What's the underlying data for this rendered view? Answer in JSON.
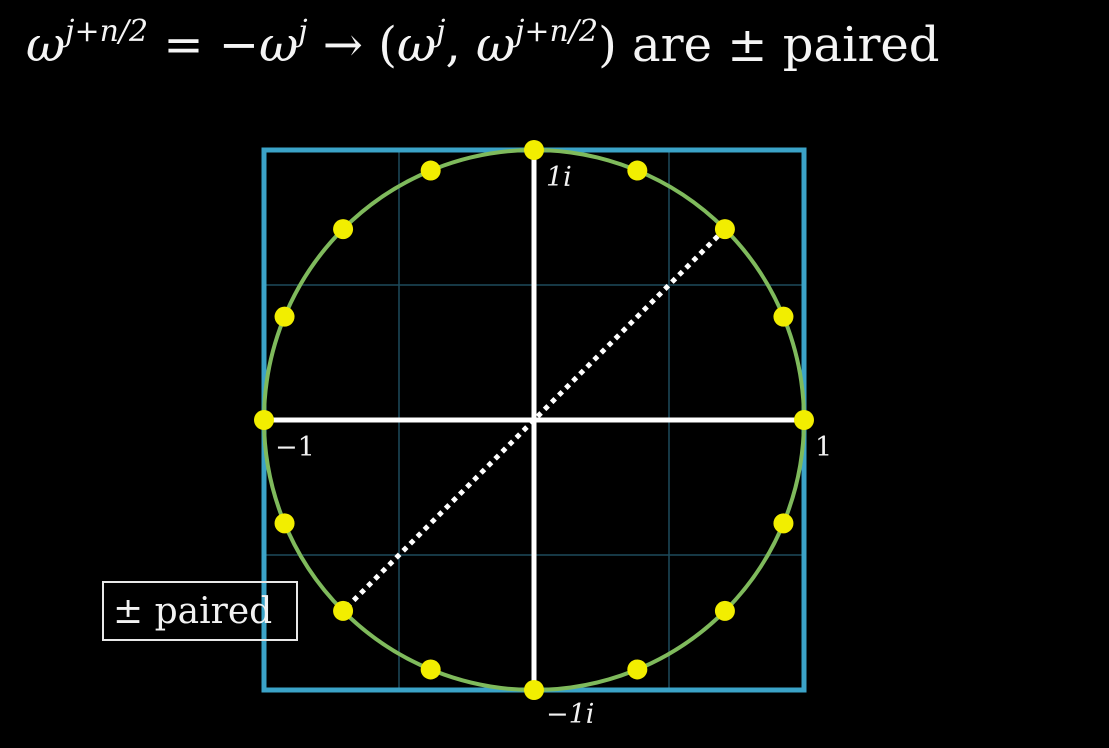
{
  "headline": {
    "omega": "ω",
    "exp1": "j+n/2",
    "eq": " = −",
    "omega2": "ω",
    "exp2": "j",
    "arrow": " → (",
    "omega3": "ω",
    "exp3": "j",
    "comma": ", ",
    "omega4": "ω",
    "exp4": "j+n/2",
    "close": ") ",
    "text": "are ± paired"
  },
  "diagram": {
    "axis_labels": {
      "real_neg": "−1",
      "real_pos": "1",
      "imag_pos": "1i",
      "imag_neg": "−1i"
    },
    "annotation_label": "± paired",
    "roots_of_unity_count": 16,
    "highlighted_pair_angles_deg": [
      45,
      225
    ],
    "colors": {
      "frame": "#3ba3c8",
      "circle": "#7fba5c",
      "grid": "#1d4b5c",
      "axes": "#ffffff",
      "points": "#f2ee00",
      "pair_line": "#ffffff"
    }
  }
}
